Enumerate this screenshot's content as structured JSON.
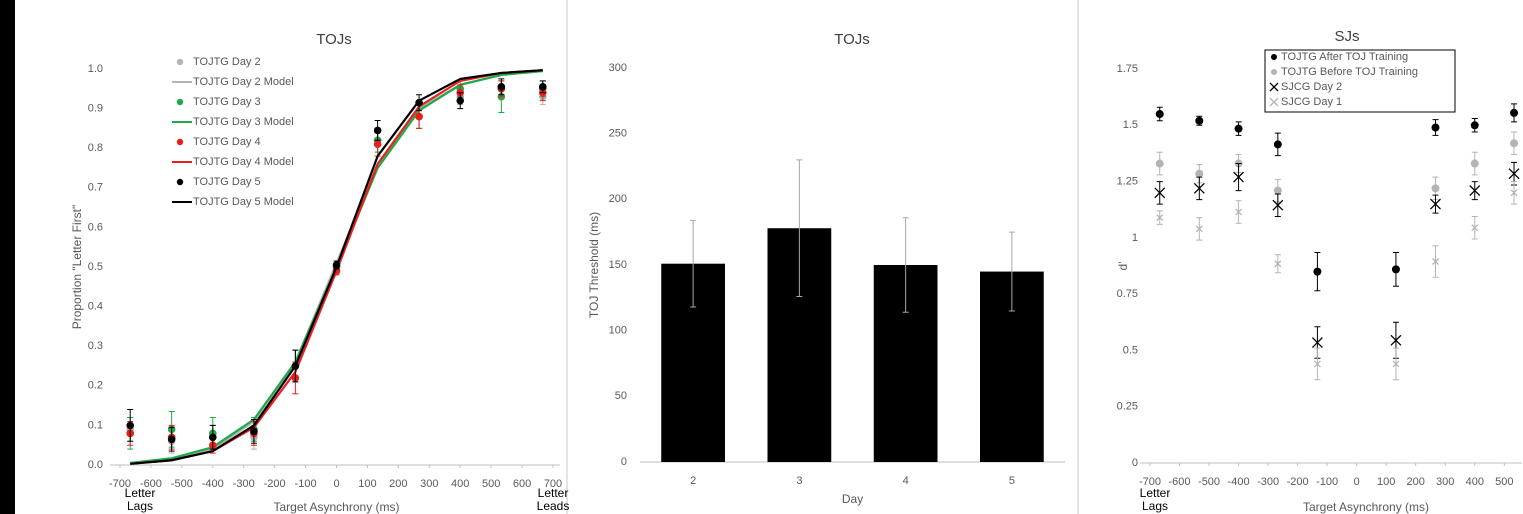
{
  "chart_data": [
    {
      "type": "scatter",
      "title": "TOJs",
      "x_label": "Target Asynchrony (ms)",
      "y_label": "Proportion \"Letter First\"",
      "notes_left": [
        "Letter",
        "Lags"
      ],
      "notes_right": [
        "Letter",
        "Leads"
      ],
      "x": [
        -667,
        -533,
        -400,
        -267,
        -133,
        0,
        133,
        267,
        400,
        533,
        667
      ],
      "xlim": [
        -700,
        700
      ],
      "xticks": [
        -700,
        -600,
        -500,
        -400,
        -300,
        -200,
        -100,
        0,
        100,
        200,
        300,
        400,
        500,
        600,
        700
      ],
      "ylim": [
        0,
        1
      ],
      "yticks": [
        {
          "value": 0,
          "label": "0.0"
        },
        {
          "value": 0.1,
          "label": "0.1"
        },
        {
          "value": 0.2,
          "label": "0.2"
        },
        {
          "value": 0.3,
          "label": "0.3"
        },
        {
          "value": 0.4,
          "label": "0.4"
        },
        {
          "value": 0.5,
          "label": "0.5"
        },
        {
          "value": 0.6,
          "label": "0.6"
        },
        {
          "value": 0.7,
          "label": "0.7"
        },
        {
          "value": 0.8,
          "label": "0.8"
        },
        {
          "value": 0.9,
          "label": "0.9"
        },
        {
          "value": 1,
          "label": "1.0"
        }
      ],
      "legend": "top-left",
      "series": [
        {
          "name": "TOJTG Day 2",
          "color": "#b4b4b4",
          "marker": "circle",
          "values": [
            0.09,
            0.06,
            0.07,
            0.07,
            0.25,
            0.5,
            0.82,
            0.88,
            0.93,
            0.95,
            0.93
          ],
          "errors": [
            0.03,
            0.03,
            0.03,
            0.03,
            0.04,
            0.01,
            0.03,
            0.03,
            0.02,
            0.02,
            0.02
          ]
        },
        {
          "name": "TOJTG Day 2 Model",
          "color": "#b4b4b4",
          "marker": "line",
          "values": [
            0.004,
            0.015,
            0.04,
            0.11,
            0.26,
            0.51,
            0.76,
            0.9,
            0.96,
            0.985,
            0.995
          ]
        },
        {
          "name": "TOJTG Day 3",
          "color": "#1faa4a",
          "marker": "circle",
          "values": [
            0.08,
            0.09,
            0.08,
            0.09,
            0.25,
            0.5,
            0.82,
            0.88,
            0.95,
            0.93,
            0.95
          ],
          "errors": [
            0.04,
            0.045,
            0.04,
            0.03,
            0.04,
            0.01,
            0.03,
            0.03,
            0.02,
            0.04,
            0.02
          ]
        },
        {
          "name": "TOJTG Day 3 Model",
          "color": "#1faa4a",
          "marker": "line",
          "values": [
            0.005,
            0.017,
            0.045,
            0.115,
            0.26,
            0.5,
            0.75,
            0.895,
            0.96,
            0.985,
            0.995
          ]
        },
        {
          "name": "TOJTG Day 4",
          "color": "#e8201c",
          "marker": "circle",
          "values": [
            0.08,
            0.07,
            0.05,
            0.08,
            0.22,
            0.49,
            0.81,
            0.88,
            0.94,
            0.95,
            0.94
          ],
          "errors": [
            0.03,
            0.03,
            0.02,
            0.03,
            0.04,
            0.01,
            0.03,
            0.03,
            0.02,
            0.02,
            0.02
          ]
        },
        {
          "name": "TOJTG Day 4 Model",
          "color": "#e8201c",
          "marker": "line",
          "values": [
            0.003,
            0.012,
            0.035,
            0.095,
            0.235,
            0.49,
            0.76,
            0.905,
            0.97,
            0.99,
            0.997
          ]
        },
        {
          "name": "TOJTG Day 5",
          "color": "#000000",
          "marker": "circle",
          "values": [
            0.1,
            0.065,
            0.07,
            0.085,
            0.25,
            0.505,
            0.845,
            0.915,
            0.92,
            0.955,
            0.955
          ],
          "errors": [
            0.04,
            0.03,
            0.03,
            0.03,
            0.04,
            0.01,
            0.025,
            0.02,
            0.02,
            0.02,
            0.015
          ]
        },
        {
          "name": "TOJTG Day 5 Model",
          "color": "#000000",
          "marker": "line",
          "values": [
            0.003,
            0.012,
            0.035,
            0.1,
            0.25,
            0.5,
            0.78,
            0.92,
            0.975,
            0.99,
            0.997
          ]
        }
      ]
    },
    {
      "type": "bar",
      "title": "TOJs",
      "x_label": "Day",
      "y_label": "TOJ Threshold (ms)",
      "categories": [
        "2",
        "3",
        "4",
        "5"
      ],
      "values": [
        151,
        178,
        150,
        145
      ],
      "errors": [
        33,
        52,
        36,
        30
      ],
      "color": "#000000",
      "ylim": [
        0,
        300
      ],
      "yticks": [
        0,
        50,
        100,
        150,
        200,
        250,
        300
      ]
    },
    {
      "type": "scatter",
      "title": "SJs",
      "x_label": "Target Asynchrony (ms)",
      "y_label": "d'",
      "notes_left": [
        "Letter",
        "Lags"
      ],
      "x": [
        -667,
        -533,
        -400,
        -267,
        -133,
        133,
        267,
        400,
        533
      ],
      "xlim": [
        -700,
        560
      ],
      "xticks": [
        -700,
        -600,
        -500,
        -400,
        -300,
        -200,
        -100,
        0,
        100,
        200,
        300,
        400,
        500
      ],
      "ylim": [
        0,
        1.75
      ],
      "yticks": [
        0,
        0.25,
        0.5,
        0.75,
        1,
        1.25,
        1.5,
        1.75
      ],
      "legend": "top",
      "series": [
        {
          "name": "TOJTG  After TOJ Training",
          "color": "#000000",
          "marker": "circle",
          "marker_size": 4,
          "values": [
            1.55,
            1.52,
            1.485,
            1.415,
            0.85,
            0.86,
            1.49,
            1.5,
            1.555
          ],
          "errors": [
            0.03,
            0.02,
            0.03,
            0.05,
            0.085,
            0.075,
            0.035,
            0.03,
            0.04
          ]
        },
        {
          "name": "TOJTG Before TOJ Training",
          "color": "#b4b4b4",
          "marker": "circle",
          "marker_size": 4,
          "values": [
            1.33,
            1.285,
            1.33,
            1.21,
            null,
            null,
            1.22,
            1.33,
            1.42
          ],
          "errors": [
            0.05,
            0.04,
            0.04,
            0.05,
            null,
            null,
            0.05,
            0.05,
            0.05
          ]
        },
        {
          "name": "SJCG Day 2",
          "color": "#000000",
          "marker": "x",
          "marker_size": 5,
          "values": [
            1.2,
            1.22,
            1.27,
            1.145,
            0.535,
            0.545,
            1.15,
            1.21,
            1.285
          ],
          "errors": [
            0.05,
            0.05,
            0.06,
            0.05,
            0.07,
            0.08,
            0.04,
            0.04,
            0.05
          ]
        },
        {
          "name": "SJCG Day 1",
          "color": "#b4b4b4",
          "marker": "x",
          "marker_size": 3,
          "values": [
            1.09,
            1.04,
            1.115,
            0.885,
            0.44,
            0.44,
            0.895,
            1.045,
            1.2
          ],
          "errors": [
            0.03,
            0.05,
            0.05,
            0.04,
            0.07,
            0.07,
            0.07,
            0.05,
            0.05
          ]
        }
      ]
    }
  ]
}
